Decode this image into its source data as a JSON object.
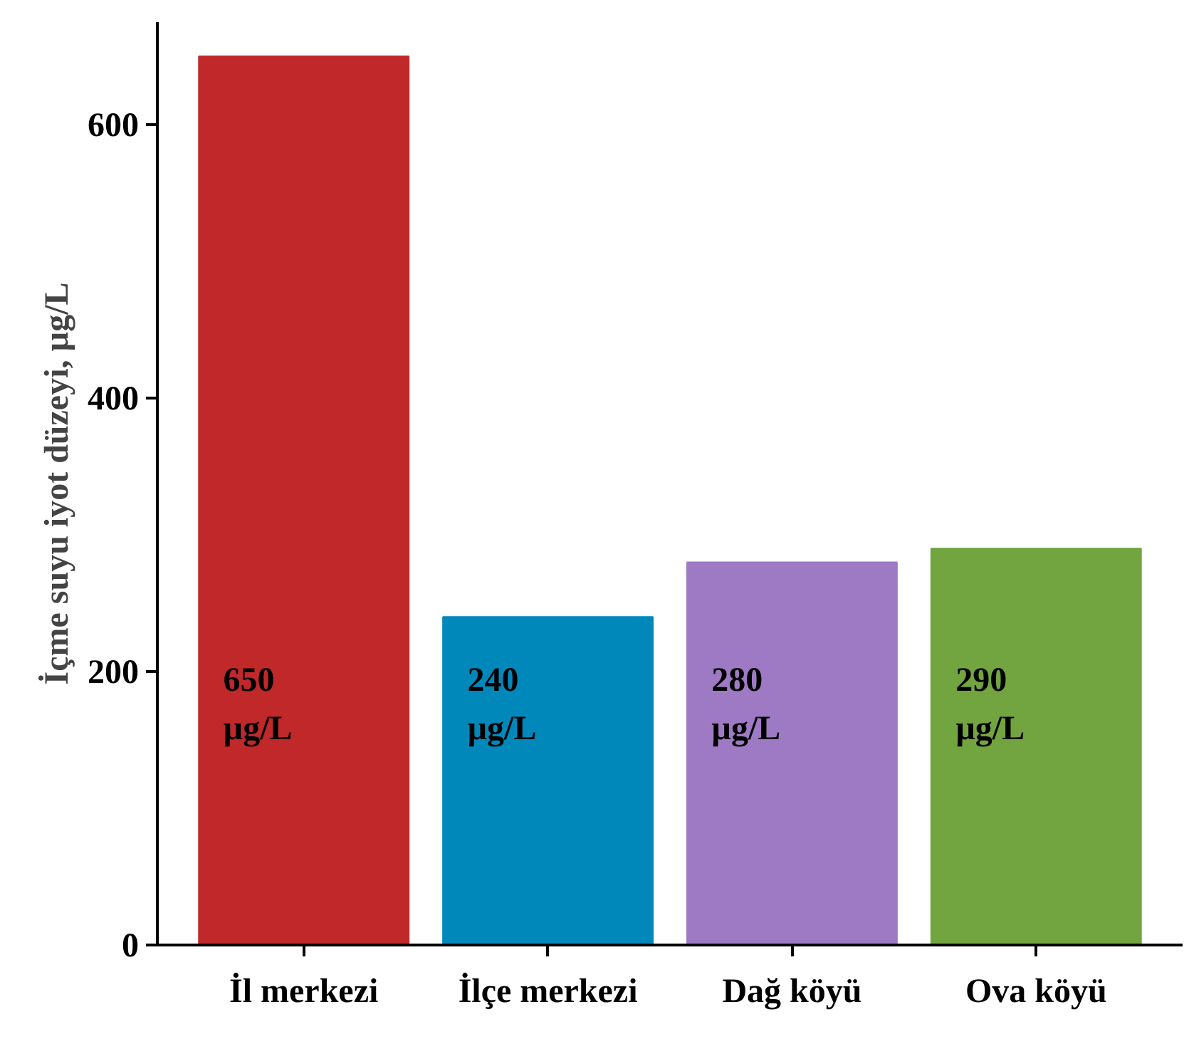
{
  "chart_data": {
    "type": "bar",
    "ylabel": "İçme suyu iyot düzeyi, µg/L",
    "categories": [
      "İl merkezi",
      "İlçe merkezi",
      "Dağ köyü",
      "Ova köyü"
    ],
    "values": [
      650,
      240,
      280,
      290
    ],
    "colors": [
      "#c0282a",
      "#0088bb",
      "#9f7ac4",
      "#72a540"
    ],
    "value_labels": [
      "650\nµg/L",
      "240\nµg/L",
      "280\nµg/L",
      "290\nµg/L"
    ],
    "ylim": [
      0,
      675
    ],
    "yticks": [
      0,
      200,
      400,
      600
    ],
    "grid": false
  }
}
